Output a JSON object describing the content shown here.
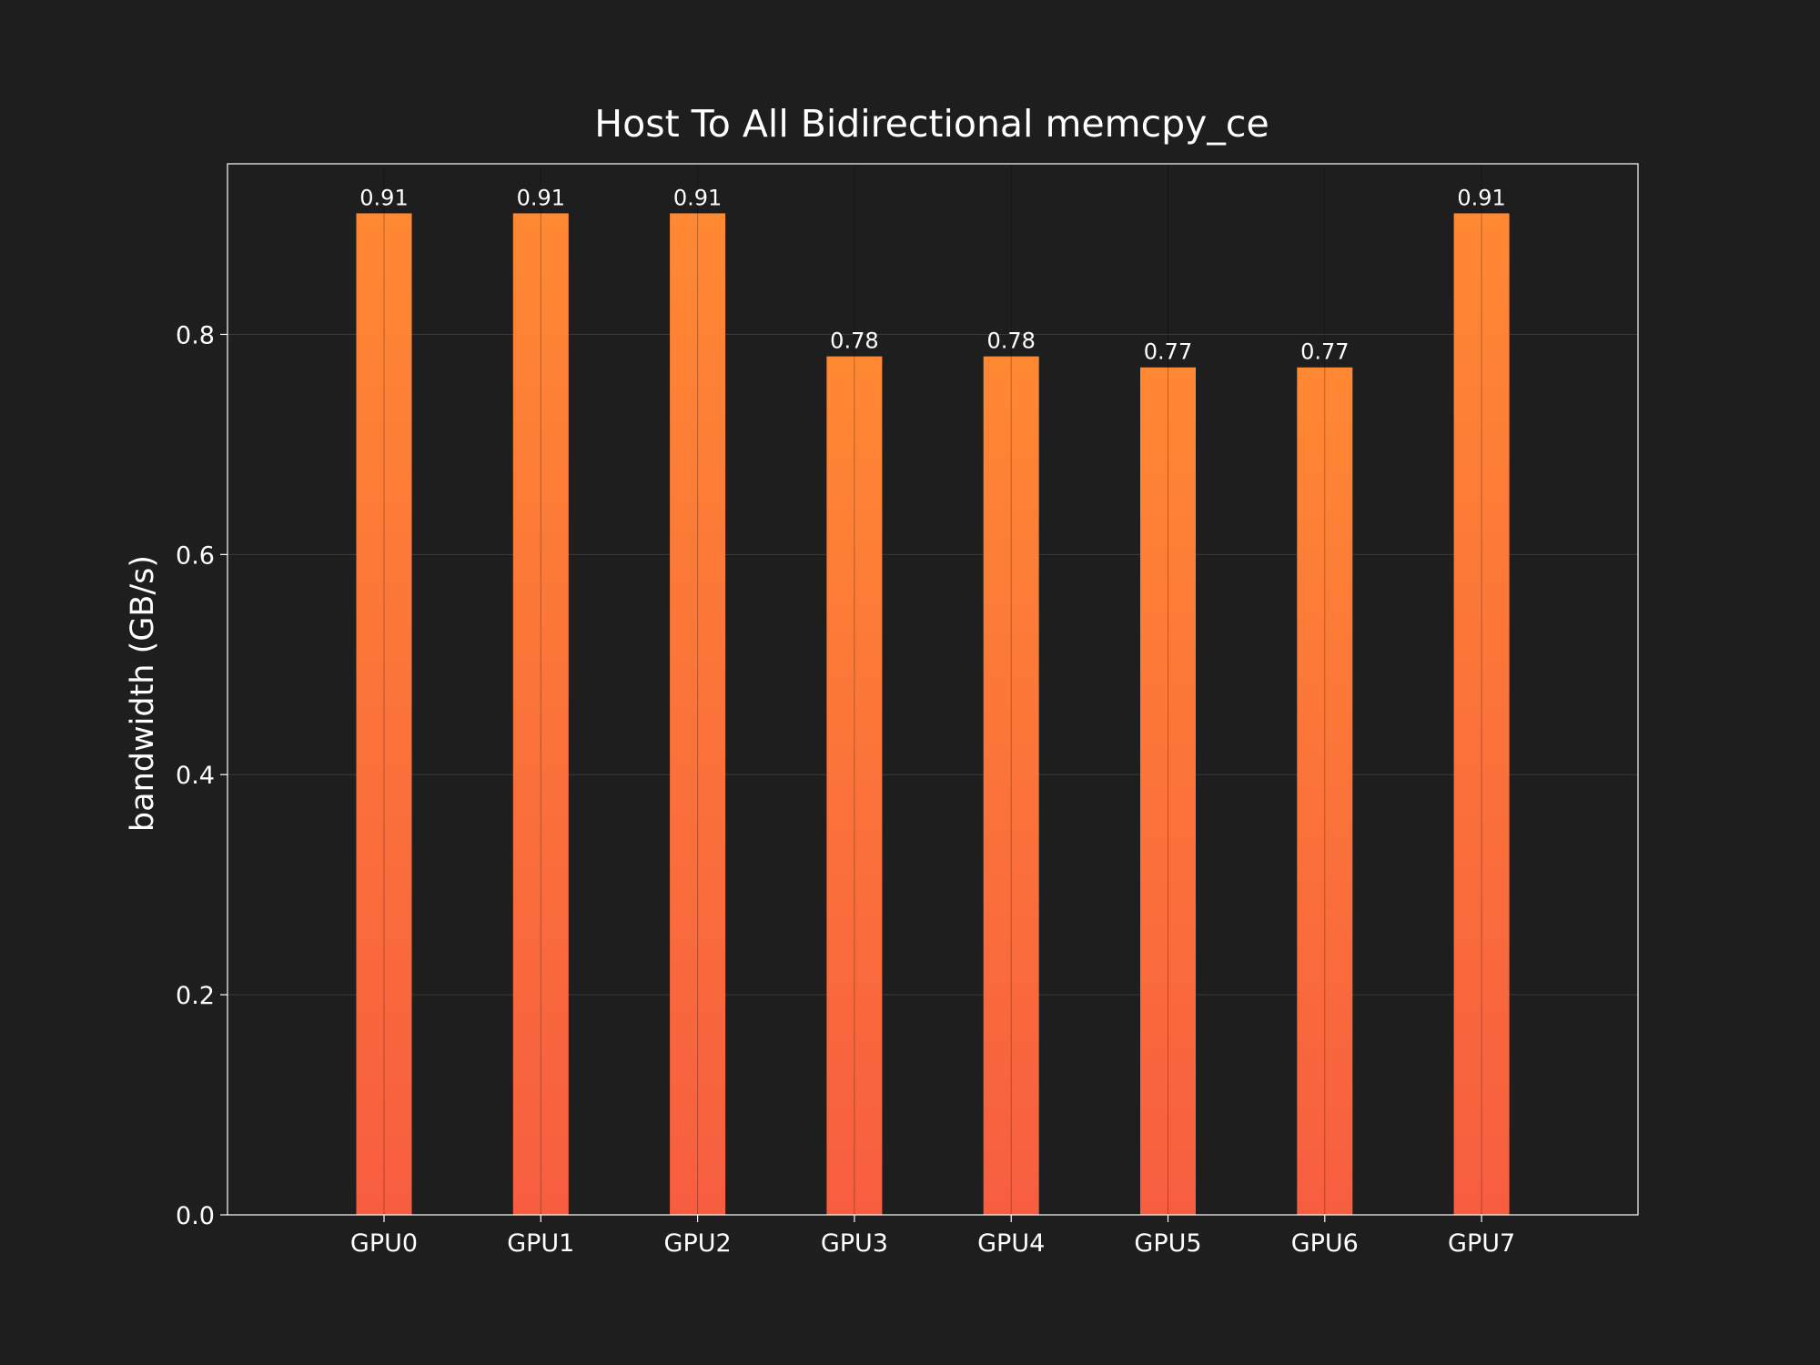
{
  "colors": {
    "background": "#1e1e1e",
    "bar_top": "#ff8833",
    "bar_bottom": "#f75e40",
    "grid": "#3a3a3a",
    "text": "#ffffff",
    "frame": "#ffffff"
  },
  "chart_data": {
    "type": "bar",
    "title": "Host To All Bidirectional memcpy_ce",
    "xlabel": "",
    "ylabel": "bandwidth (GB/s)",
    "categories": [
      "GPU0",
      "GPU1",
      "GPU2",
      "GPU3",
      "GPU4",
      "GPU5",
      "GPU6",
      "GPU7"
    ],
    "values": [
      0.91,
      0.91,
      0.91,
      0.78,
      0.78,
      0.77,
      0.77,
      0.91
    ],
    "value_labels": [
      "0.91",
      "0.91",
      "0.91",
      "0.78",
      "0.78",
      "0.77",
      "0.77",
      "0.91"
    ],
    "ylim": [
      0,
      0.955
    ],
    "yticks": [
      0.0,
      0.2,
      0.4,
      0.6,
      0.8
    ],
    "ytick_labels": [
      "0.0",
      "0.2",
      "0.4",
      "0.6",
      "0.8"
    ],
    "grid": true,
    "legend": "none"
  }
}
